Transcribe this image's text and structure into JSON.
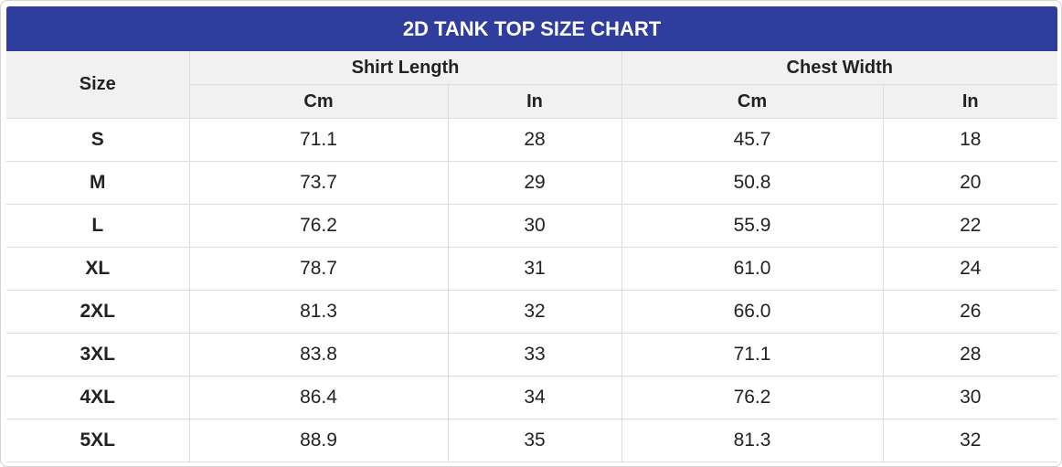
{
  "title": "2D TANK TOP SIZE CHART",
  "header": {
    "size": "Size",
    "groups": [
      {
        "label": "Shirt Length",
        "units": [
          "Cm",
          "In"
        ]
      },
      {
        "label": "Chest Width",
        "units": [
          "Cm",
          "In"
        ]
      }
    ]
  },
  "rows": [
    [
      "S",
      "71.1",
      "28",
      "45.7",
      "18"
    ],
    [
      "M",
      "73.7",
      "29",
      "50.8",
      "20"
    ],
    [
      "L",
      "76.2",
      "30",
      "55.9",
      "22"
    ],
    [
      "XL",
      "78.7",
      "31",
      "61.0",
      "24"
    ],
    [
      "2XL",
      "81.3",
      "32",
      "66.0",
      "26"
    ],
    [
      "3XL",
      "83.8",
      "33",
      "71.1",
      "28"
    ],
    [
      "4XL",
      "86.4",
      "34",
      "76.2",
      "30"
    ],
    [
      "5XL",
      "88.9",
      "35",
      "81.3",
      "32"
    ]
  ]
}
